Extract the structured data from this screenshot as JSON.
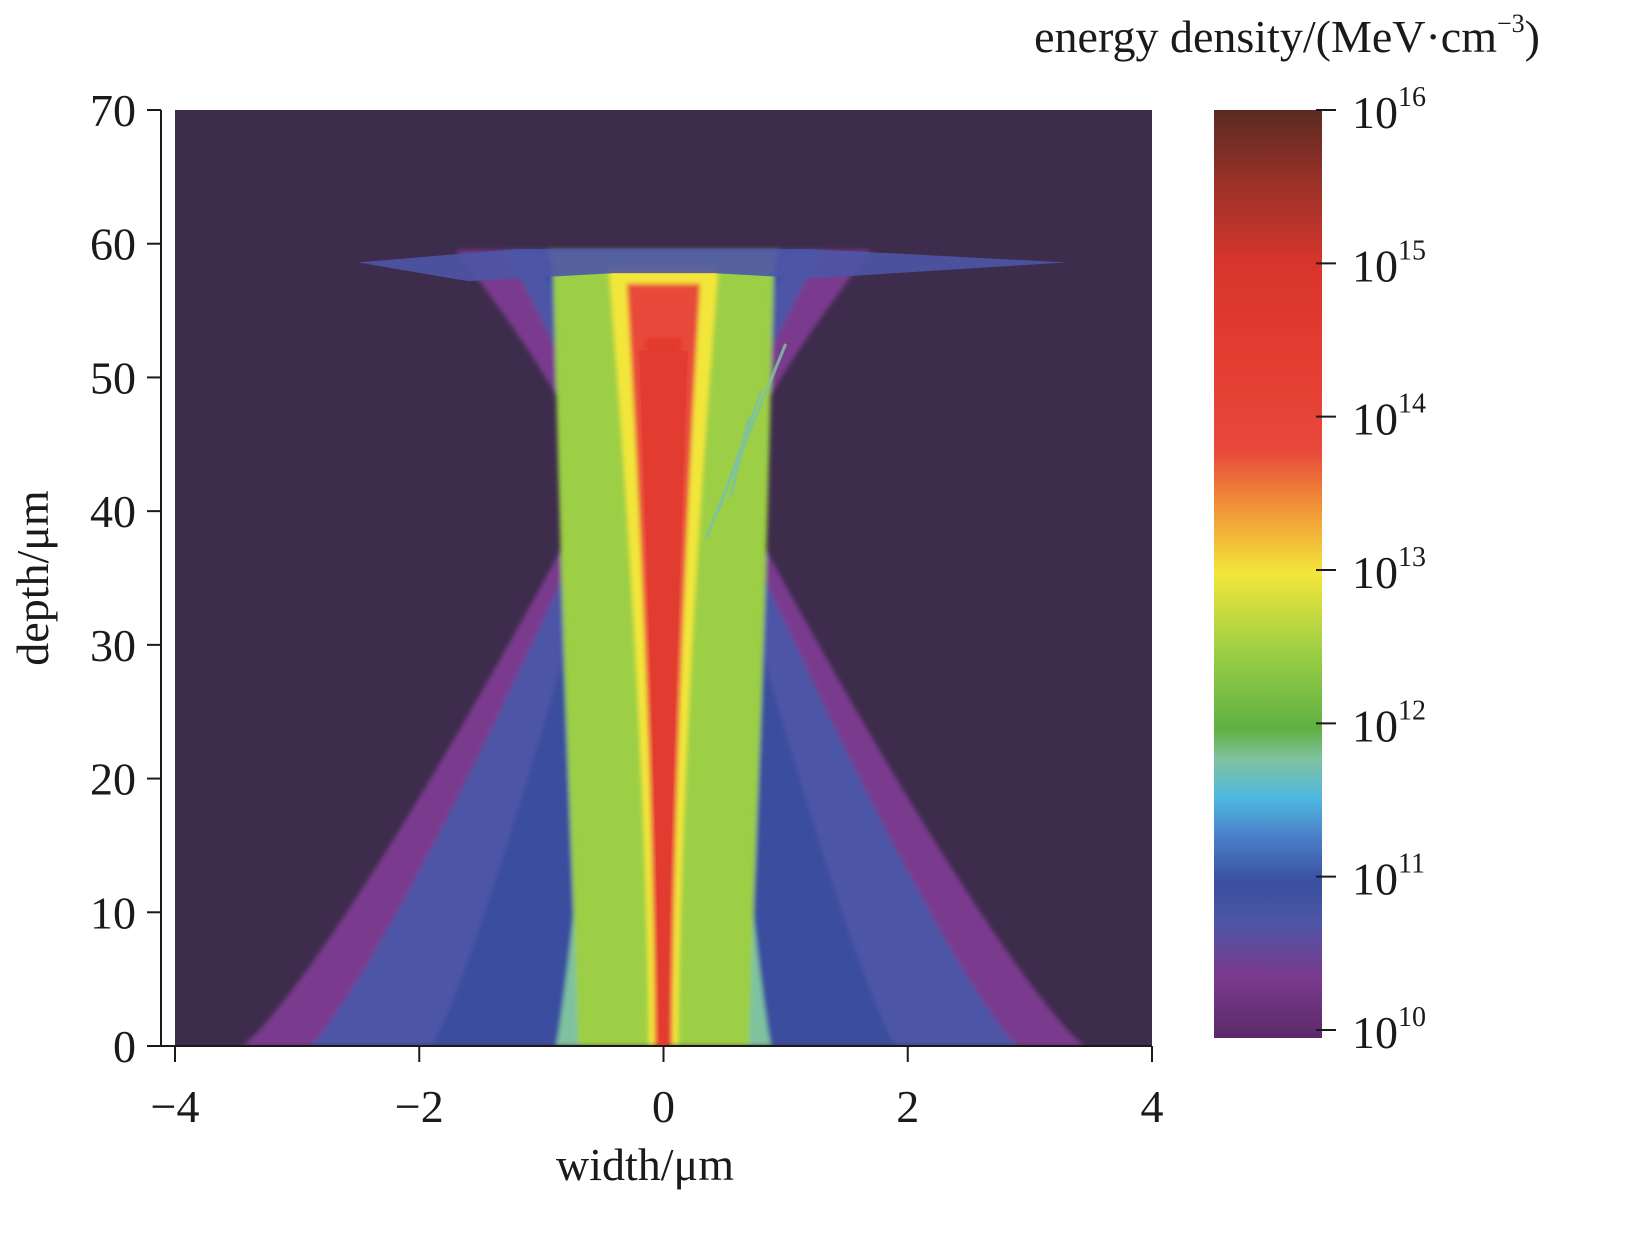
{
  "chart_data": {
    "type": "heatmap",
    "xlabel": "width/μm",
    "ylabel": "depth/μm",
    "colorbar_label": "energy density/(MeV·cm",
    "colorbar_label_exp": "−3",
    "colorbar_label_end": ")",
    "xlim": [
      -4,
      4
    ],
    "ylim": [
      0,
      70
    ],
    "x_ticks": [
      {
        "value": -4,
        "label": "−4"
      },
      {
        "value": -2,
        "label": "−2"
      },
      {
        "value": 0,
        "label": "0"
      },
      {
        "value": 2,
        "label": "2"
      },
      {
        "value": 4,
        "label": "4"
      }
    ],
    "y_ticks": [
      {
        "value": 0,
        "label": "0"
      },
      {
        "value": 10,
        "label": "10"
      },
      {
        "value": 20,
        "label": "20"
      },
      {
        "value": 30,
        "label": "30"
      },
      {
        "value": 40,
        "label": "40"
      },
      {
        "value": 50,
        "label": "50"
      },
      {
        "value": 60,
        "label": "60"
      },
      {
        "value": 70,
        "label": "70"
      }
    ],
    "colorbar": {
      "scale": "log",
      "range_exp": [
        10,
        16
      ],
      "ticks": [
        {
          "exp": 10,
          "base": "10",
          "sup": "10"
        },
        {
          "exp": 11,
          "base": "10",
          "sup": "11"
        },
        {
          "exp": 12,
          "base": "10",
          "sup": "12"
        },
        {
          "exp": 13,
          "base": "10",
          "sup": "13"
        },
        {
          "exp": 14,
          "base": "10",
          "sup": "14"
        },
        {
          "exp": 15,
          "base": "10",
          "sup": "15"
        },
        {
          "exp": 16,
          "base": "10",
          "sup": "16"
        }
      ],
      "stops": [
        {
          "exp": 9.9,
          "color": "#3e2c4d"
        },
        {
          "exp": 10.0,
          "color": "#5a2a6a"
        },
        {
          "exp": 10.4,
          "color": "#7a3a8e"
        },
        {
          "exp": 10.75,
          "color": "#4e55a6"
        },
        {
          "exp": 11.0,
          "color": "#3a4e9e"
        },
        {
          "exp": 11.3,
          "color": "#4a7fc8"
        },
        {
          "exp": 11.55,
          "color": "#4fb8e0"
        },
        {
          "exp": 11.8,
          "color": "#7fc2a0"
        },
        {
          "exp": 12.0,
          "color": "#5fb043"
        },
        {
          "exp": 12.5,
          "color": "#9ccf44"
        },
        {
          "exp": 13.0,
          "color": "#f3e63a"
        },
        {
          "exp": 13.4,
          "color": "#f29a38"
        },
        {
          "exp": 13.8,
          "color": "#e8483a"
        },
        {
          "exp": 14.5,
          "color": "#e23b2f"
        },
        {
          "exp": 15.0,
          "color": "#d8352c"
        },
        {
          "exp": 15.5,
          "color": "#9e3228"
        },
        {
          "exp": 16.0,
          "color": "#5a2a22"
        }
      ]
    },
    "background_color": "#3e2c4d",
    "profile": {
      "core_halfwidth_top": 0.22,
      "core_halfwidth_bottom": 0.03,
      "spread_top_depth": 59.5,
      "waist_depth": 42,
      "base_halfwidth": 3.4
    }
  }
}
